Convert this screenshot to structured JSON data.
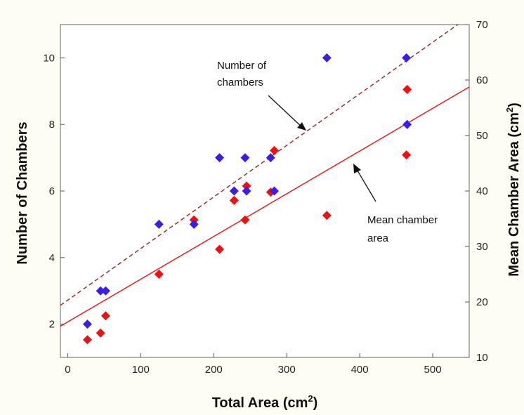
{
  "chart_data": {
    "type": "scatter",
    "x": {
      "label_main": "Total Area (cm",
      "label_sup": "2",
      "label_end": ")",
      "range": [
        -10,
        550
      ],
      "ticks": [
        0,
        100,
        200,
        300,
        400,
        500
      ],
      "tick_labels": [
        "0",
        "100",
        "200",
        "300",
        "400",
        "500"
      ]
    },
    "y_left": {
      "label": "Number of Chambers",
      "range": [
        1,
        11
      ],
      "ticks": [
        2,
        4,
        6,
        8,
        10
      ],
      "tick_labels": [
        "2",
        "4",
        "6",
        "8",
        "10"
      ]
    },
    "y_right": {
      "label_main": "Mean Chamber Area (cm",
      "label_sup": "2",
      "label_end": ")",
      "range": [
        10,
        70
      ],
      "ticks": [
        10,
        20,
        30,
        40,
        50,
        60,
        70
      ],
      "tick_labels": [
        "10",
        "20",
        "30",
        "40",
        "50",
        "60",
        "70"
      ]
    },
    "series": [
      {
        "axis": "left",
        "color": "#3a1ee8",
        "points": [
          [
            27,
            2
          ],
          [
            45,
            3
          ],
          [
            52,
            3
          ],
          [
            125,
            5
          ],
          [
            173,
            5
          ],
          [
            208,
            7
          ],
          [
            228,
            6
          ],
          [
            243,
            7
          ],
          [
            245,
            6
          ],
          [
            278,
            7
          ],
          [
            283,
            6
          ],
          [
            355,
            10
          ],
          [
            464,
            10
          ],
          [
            465,
            8
          ]
        ]
      },
      {
        "axis": "right",
        "color": "#ee1111",
        "points": [
          [
            27,
            13.2
          ],
          [
            45,
            14.4
          ],
          [
            52,
            17.5
          ],
          [
            125,
            25
          ],
          [
            173,
            34.8
          ],
          [
            208,
            29.5
          ],
          [
            228,
            38.3
          ],
          [
            243,
            34.8
          ],
          [
            245,
            40.9
          ],
          [
            278,
            39.8
          ],
          [
            283,
            47.3
          ],
          [
            355,
            35.6
          ],
          [
            464,
            46.5
          ],
          [
            465,
            58.3
          ]
        ]
      }
    ],
    "fit_lines": [
      {
        "axis": "left",
        "style": "dashed",
        "color": "#9b1f1f",
        "intercept": 2.72,
        "slope": 0.0155
      },
      {
        "axis": "right",
        "style": "solid",
        "color": "#ee1111",
        "intercept": 16.4,
        "slope": 0.077
      }
    ],
    "annotations": [
      {
        "lines": [
          "Number of",
          "chambers"
        ]
      },
      {
        "lines": [
          "Mean chamber",
          "area"
        ]
      }
    ]
  }
}
